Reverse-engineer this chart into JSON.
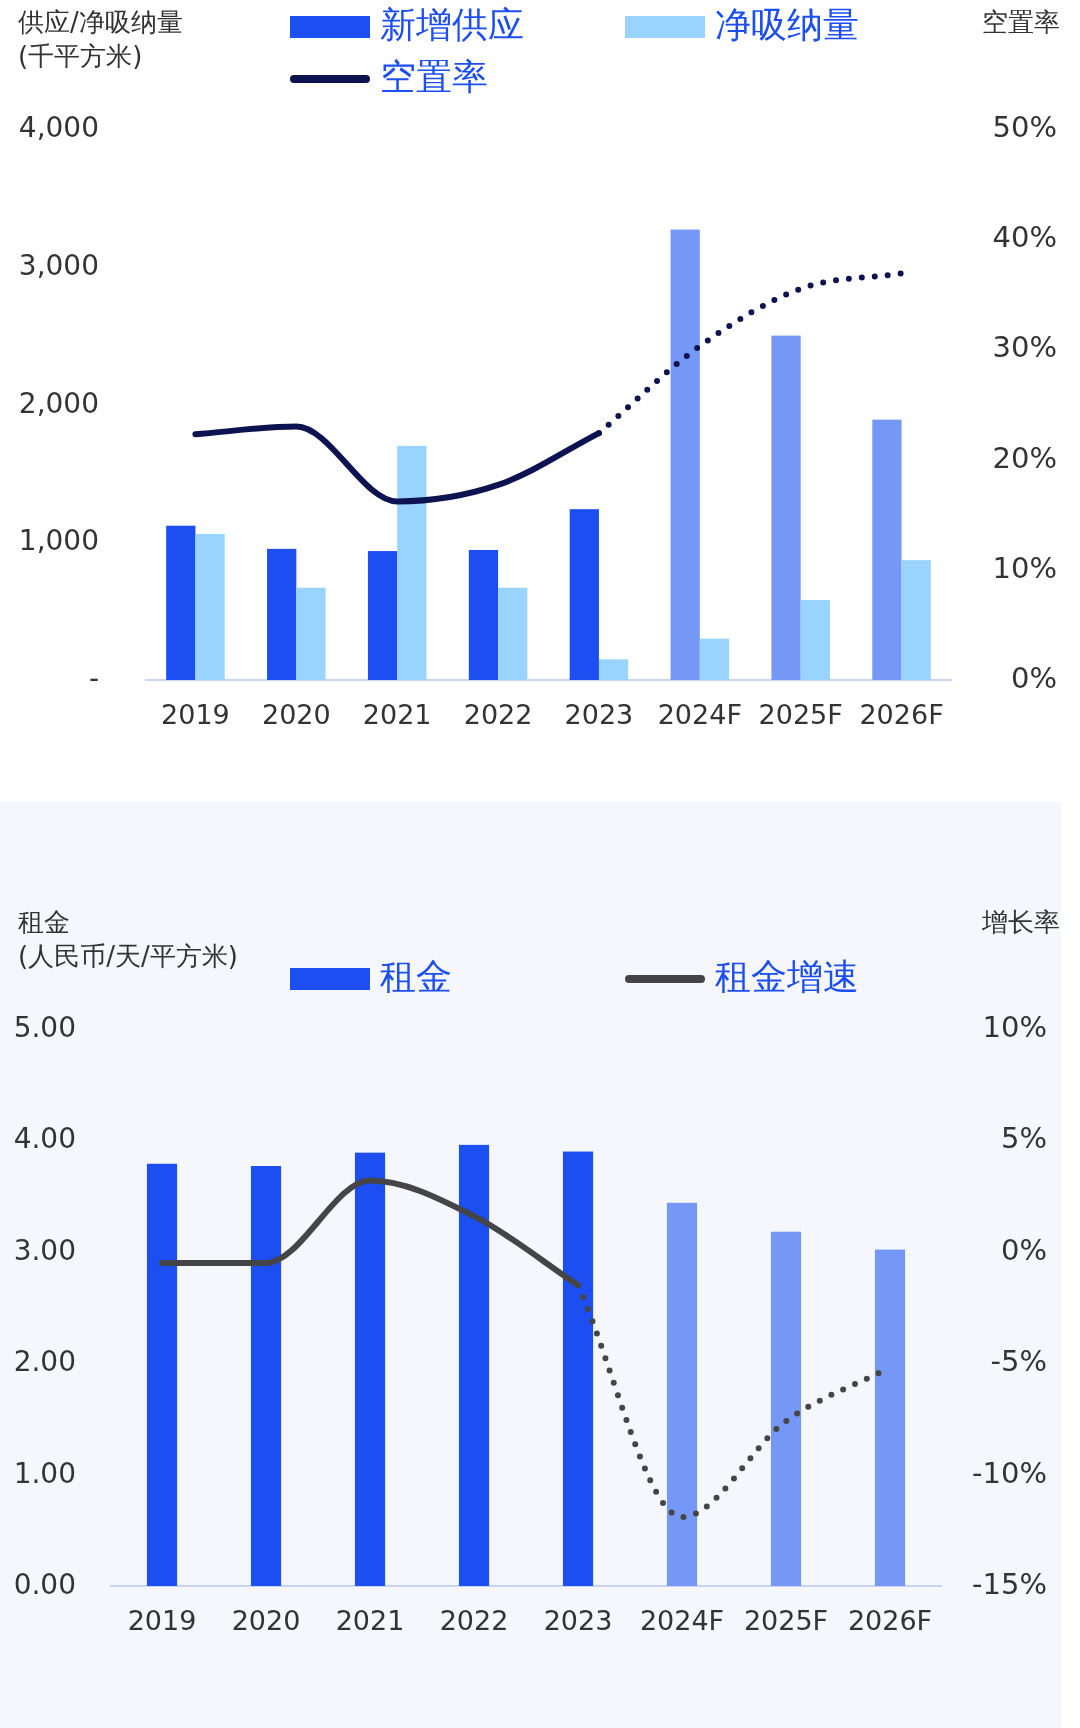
{
  "chart_data": [
    {
      "type": "bar",
      "ylabel": "供应/净吸纳量\n(千平方米)",
      "y2label": "空置率",
      "categories": [
        "2019",
        "2020",
        "2021",
        "2022",
        "2023",
        "2024F",
        "2025F",
        "2026F"
      ],
      "series": [
        {
          "name": "新增供应",
          "color": "#1c4ef2",
          "colors": [
            "#1c4ef2",
            "#1c4ef2",
            "#1c4ef2",
            "#1c4ef2",
            "#1c4ef2",
            "#7598f7",
            "#7598f7",
            "#7598f7"
          ],
          "values": [
            1120,
            952,
            936,
            944,
            1240,
            3270,
            2500,
            1890
          ]
        },
        {
          "name": "净吸纳量",
          "color": "#99d3ff",
          "values": [
            1060,
            670,
            1700,
            670,
            150,
            300,
            580,
            870
          ]
        },
        {
          "name": "空置率",
          "type": "line",
          "axis": "y2",
          "color": "#0d1250",
          "line_style": "solid",
          "values": [
            22.3,
            23.0,
            16.2,
            17.7,
            22.4,
            null,
            null,
            null
          ]
        },
        {
          "type": "line",
          "axis": "y2",
          "color": "#0d1250",
          "line_style": "dotted",
          "values": [
            null,
            null,
            null,
            null,
            22.4,
            30.3,
            35.5,
            36.9
          ]
        }
      ],
      "ylim": [
        0,
        4000
      ],
      "yticks": [
        {
          "value": 0,
          "label": "-"
        },
        {
          "value": 1000,
          "label": "1,000"
        },
        {
          "value": 2000,
          "label": "2,000"
        },
        {
          "value": 3000,
          "label": "3,000"
        },
        {
          "value": 4000,
          "label": "4,000"
        }
      ],
      "y2lim": [
        0,
        50
      ],
      "y2ticks": [
        {
          "value": 0,
          "label": "0%"
        },
        {
          "value": 10,
          "label": "10%"
        },
        {
          "value": 20,
          "label": "20%"
        },
        {
          "value": 30,
          "label": "30%"
        },
        {
          "value": 40,
          "label": "40%"
        },
        {
          "value": 50,
          "label": "50%"
        }
      ],
      "legend": "top"
    },
    {
      "type": "bar",
      "ylabel": "租金\n(人民币/天/平方米)",
      "y2label": "增长率",
      "categories": [
        "2019",
        "2020",
        "2021",
        "2022",
        "2023",
        "2024F",
        "2025F",
        "2026F"
      ],
      "series": [
        {
          "name": "租金",
          "color": "#1c4ef2",
          "colors": [
            "#1c4ef2",
            "#1c4ef2",
            "#1c4ef2",
            "#1c4ef2",
            "#1c4ef2",
            "#7598f7",
            "#7598f7",
            "#7598f7"
          ],
          "values": [
            3.79,
            3.77,
            3.89,
            3.96,
            3.9,
            3.44,
            3.18,
            3.02
          ]
        },
        {
          "name": "租金增速",
          "type": "line",
          "axis": "y2",
          "color": "#454548",
          "line_style": "solid",
          "values": [
            -0.5,
            -0.5,
            3.2,
            1.6,
            -1.5,
            null,
            null,
            null
          ]
        },
        {
          "type": "line",
          "axis": "y2",
          "color": "#454548",
          "line_style": "dotted",
          "values": [
            null,
            null,
            null,
            null,
            -1.5,
            -11.9,
            -7.6,
            -5.2
          ]
        }
      ],
      "ylim": [
        0,
        5
      ],
      "yticks": [
        {
          "value": 0,
          "label": "0.00"
        },
        {
          "value": 1,
          "label": "1.00"
        },
        {
          "value": 2,
          "label": "2.00"
        },
        {
          "value": 3,
          "label": "3.00"
        },
        {
          "value": 4,
          "label": "4.00"
        },
        {
          "value": 5,
          "label": "5.00"
        }
      ],
      "y2lim": [
        -15,
        10
      ],
      "y2ticks": [
        {
          "value": -15,
          "label": "-15%"
        },
        {
          "value": -10,
          "label": "-10%"
        },
        {
          "value": -5,
          "label": "-5%"
        },
        {
          "value": 0,
          "label": "0%"
        },
        {
          "value": 5,
          "label": "5%"
        },
        {
          "value": 10,
          "label": "10%"
        }
      ],
      "legend": "top"
    }
  ]
}
